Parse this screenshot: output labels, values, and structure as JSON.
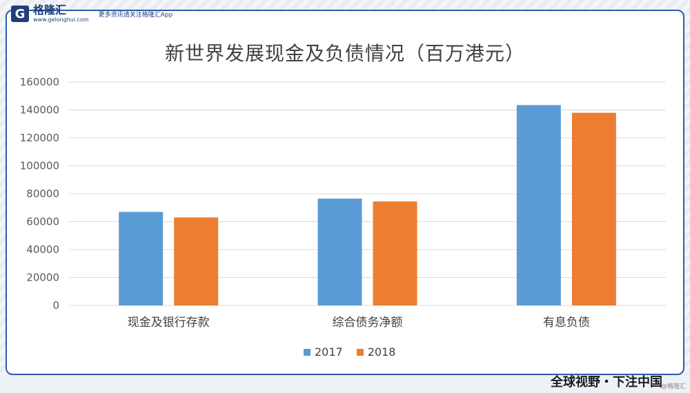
{
  "brand": {
    "logo_letter": "G",
    "name": "格隆汇",
    "url": "www.gelonghui.com",
    "tagline": "更多资讯请关注格隆汇App"
  },
  "footer": {
    "slogan": "全球视野・下注中国",
    "watermark": "@格隆汇"
  },
  "chart_data": {
    "type": "bar",
    "title": "新世界发展现金及负债情况（百万港元）",
    "categories": [
      "现金及银行存款",
      "综合债务净额",
      "有息负债"
    ],
    "series": [
      {
        "name": "2017",
        "color": "#5b9bd5",
        "values": [
          67000,
          76500,
          143500
        ]
      },
      {
        "name": "2018",
        "color": "#ed7d31",
        "values": [
          63000,
          74500,
          138000
        ]
      }
    ],
    "ylim": [
      0,
      160000
    ],
    "yticks": [
      "0",
      "20000",
      "40000",
      "60000",
      "80000",
      "100000",
      "120000",
      "140000",
      "160000"
    ],
    "grid": true,
    "legend_position": "bottom"
  }
}
